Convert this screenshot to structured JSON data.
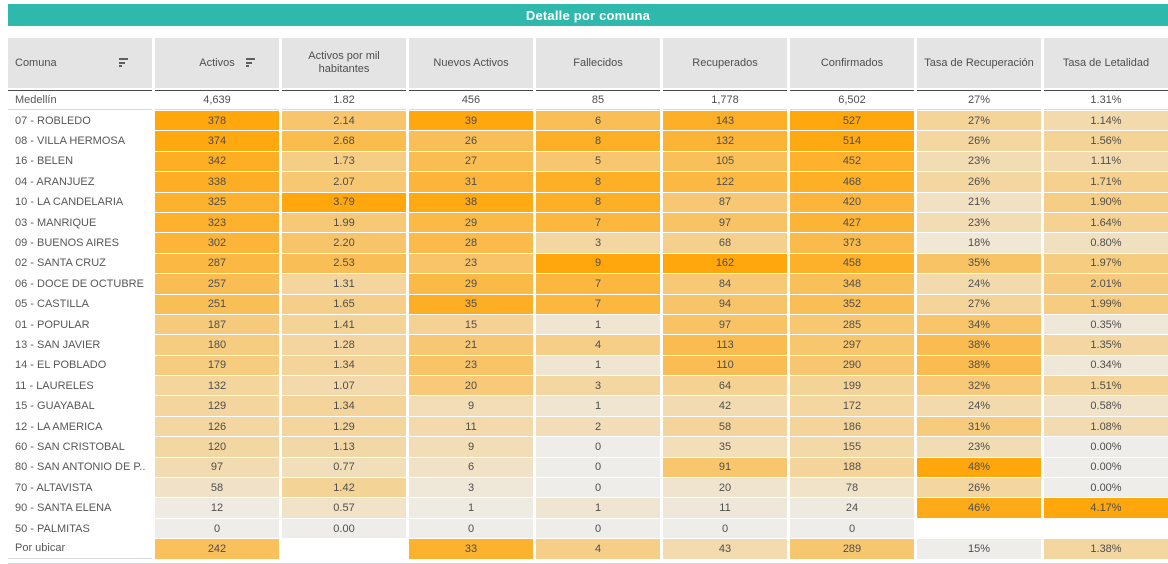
{
  "title": "Detalle por comuna",
  "colors": {
    "accent_teal": "#2FB8AC",
    "header_bg": "#E4E4E4",
    "heatmap_low": "#EEEDE9",
    "heatmap_high": "#FFA70D",
    "summary_top_border": "#4a4a4a"
  },
  "chart_data": {
    "type": "heatmap",
    "title": "Detalle por comuna",
    "legend_position": "none",
    "grid": false,
    "columns": [
      {
        "label": "Comuna",
        "sortable": true
      },
      {
        "label": "Activos",
        "sortable": true
      },
      {
        "label": "Activos por mil habitantes",
        "sortable": false
      },
      {
        "label": "Nuevos Activos",
        "sortable": false
      },
      {
        "label": "Fallecidos",
        "sortable": false
      },
      {
        "label": "Recuperados",
        "sortable": false
      },
      {
        "label": "Confirmados",
        "sortable": false
      },
      {
        "label": "Tasa de Recuperación",
        "sortable": false
      },
      {
        "label": "Tasa de Letalidad",
        "sortable": false
      }
    ],
    "summary_row": {
      "label": "Medellín",
      "values": [
        "4,639",
        "1.82",
        "456",
        "85",
        "1,778",
        "6,502",
        "27%",
        "1.31%"
      ]
    },
    "rows": [
      {
        "label": "07 - ROBLEDO",
        "values": [
          "378",
          "2.14",
          "39",
          "6",
          "143",
          "527",
          "27%",
          "1.14%"
        ]
      },
      {
        "label": "08 - VILLA HERMOSA",
        "values": [
          "374",
          "2.68",
          "26",
          "8",
          "132",
          "514",
          "26%",
          "1.56%"
        ]
      },
      {
        "label": "16 - BELEN",
        "values": [
          "342",
          "1.73",
          "27",
          "5",
          "105",
          "452",
          "23%",
          "1.11%"
        ]
      },
      {
        "label": "04 - ARANJUEZ",
        "values": [
          "338",
          "2.07",
          "31",
          "8",
          "122",
          "468",
          "26%",
          "1.71%"
        ]
      },
      {
        "label": "10 - LA CANDELARIA",
        "values": [
          "325",
          "3.79",
          "38",
          "8",
          "87",
          "420",
          "21%",
          "1.90%"
        ]
      },
      {
        "label": "03 - MANRIQUE",
        "values": [
          "323",
          "1.99",
          "29",
          "7",
          "97",
          "427",
          "23%",
          "1.64%"
        ]
      },
      {
        "label": "09 - BUENOS AIRES",
        "values": [
          "302",
          "2.20",
          "28",
          "3",
          "68",
          "373",
          "18%",
          "0.80%"
        ]
      },
      {
        "label": "02 - SANTA CRUZ",
        "values": [
          "287",
          "2.53",
          "23",
          "9",
          "162",
          "458",
          "35%",
          "1.97%"
        ]
      },
      {
        "label": "06 - DOCE DE OCTUBRE",
        "values": [
          "257",
          "1.31",
          "29",
          "7",
          "84",
          "348",
          "24%",
          "2.01%"
        ]
      },
      {
        "label": "05 - CASTILLA",
        "values": [
          "251",
          "1.65",
          "35",
          "7",
          "94",
          "352",
          "27%",
          "1.99%"
        ]
      },
      {
        "label": "01 - POPULAR",
        "values": [
          "187",
          "1.41",
          "15",
          "1",
          "97",
          "285",
          "34%",
          "0.35%"
        ]
      },
      {
        "label": "13 - SAN JAVIER",
        "values": [
          "180",
          "1.28",
          "21",
          "4",
          "113",
          "297",
          "38%",
          "1.35%"
        ]
      },
      {
        "label": "14 - EL POBLADO",
        "values": [
          "179",
          "1.34",
          "23",
          "1",
          "110",
          "290",
          "38%",
          "0.34%"
        ]
      },
      {
        "label": "11 - LAURELES",
        "values": [
          "132",
          "1.07",
          "20",
          "3",
          "64",
          "199",
          "32%",
          "1.51%"
        ]
      },
      {
        "label": "15 - GUAYABAL",
        "values": [
          "129",
          "1.34",
          "9",
          "1",
          "42",
          "172",
          "24%",
          "0.58%"
        ]
      },
      {
        "label": "12 - LA AMERICA",
        "values": [
          "126",
          "1.29",
          "11",
          "2",
          "58",
          "186",
          "31%",
          "1.08%"
        ]
      },
      {
        "label": "60 - SAN CRISTOBAL",
        "values": [
          "120",
          "1.13",
          "9",
          "0",
          "35",
          "155",
          "23%",
          "0.00%"
        ]
      },
      {
        "label": "80 - SAN ANTONIO DE P..",
        "values": [
          "97",
          "0.77",
          "6",
          "0",
          "91",
          "188",
          "48%",
          "0.00%"
        ]
      },
      {
        "label": "70 - ALTAVISTA",
        "values": [
          "58",
          "1.42",
          "3",
          "0",
          "20",
          "78",
          "26%",
          "0.00%"
        ]
      },
      {
        "label": "90 - SANTA ELENA",
        "values": [
          "12",
          "0.57",
          "1",
          "1",
          "11",
          "24",
          "46%",
          "4.17%"
        ]
      },
      {
        "label": "50 - PALMITAS",
        "values": [
          "0",
          "0.00",
          "0",
          "0",
          "0",
          "0",
          "",
          ""
        ]
      },
      {
        "label": "Por ubicar",
        "values": [
          "242",
          "",
          "33",
          "4",
          "43",
          "289",
          "15%",
          "1.38%"
        ]
      }
    ]
  }
}
